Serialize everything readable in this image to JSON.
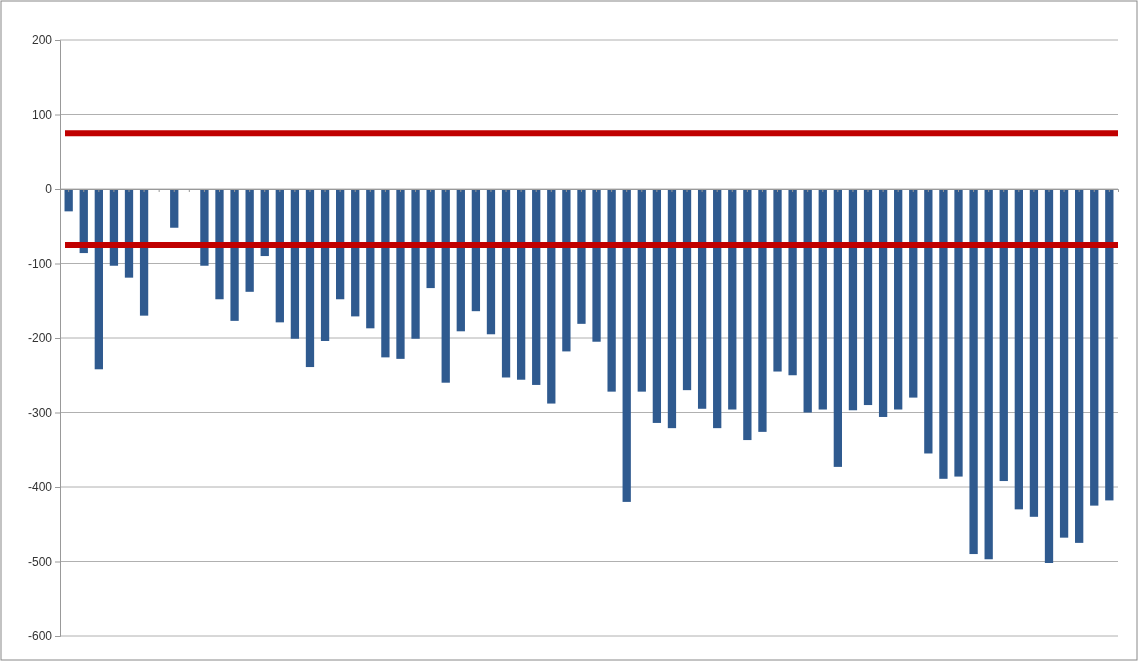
{
  "chart_data": {
    "type": "bar",
    "categories": [
      null,
      null,
      null,
      null,
      null,
      null,
      null,
      null,
      null,
      null,
      null,
      null,
      null,
      null,
      null,
      null,
      null,
      null,
      null,
      null,
      null,
      null,
      null,
      null,
      null,
      null,
      null,
      null,
      null,
      null,
      null,
      null,
      null,
      null,
      null,
      null,
      null,
      null,
      null,
      null,
      null,
      null,
      null,
      null,
      null,
      null,
      null,
      null,
      null,
      null,
      null,
      null,
      null,
      null,
      null,
      null,
      null,
      null,
      null,
      null,
      null,
      null,
      null,
      null,
      null,
      null,
      null,
      null,
      null,
      null
    ],
    "values": [
      -30,
      -86,
      -242,
      -103,
      -119,
      -170,
      null,
      -52,
      null,
      -103,
      -148,
      -177,
      -138,
      -90,
      -179,
      -201,
      -239,
      -204,
      -148,
      -171,
      -187,
      -226,
      -228,
      -201,
      -133,
      -260,
      -191,
      -164,
      -195,
      -253,
      -256,
      -263,
      -288,
      -218,
      -181,
      -205,
      -272,
      -420,
      -272,
      -314,
      -321,
      -270,
      -295,
      -321,
      -296,
      -337,
      -326,
      -245,
      -250,
      -300,
      -296,
      -373,
      -297,
      -290,
      -306,
      -296,
      -280,
      -355,
      -389,
      -386,
      -490,
      -497,
      -392,
      -430,
      -440,
      -502,
      -468,
      -475,
      -425,
      -418
    ],
    "color": "#2f5a8f",
    "ylim": [
      -600,
      200
    ],
    "yticks": [
      -600,
      -500,
      -400,
      -300,
      -200,
      -100,
      0,
      100,
      200
    ],
    "grid": "y",
    "ref_lines": [
      {
        "axis": "y",
        "value": 75,
        "color": "#c00000"
      },
      {
        "axis": "y",
        "value": -75,
        "color": "#c00000"
      }
    ]
  }
}
